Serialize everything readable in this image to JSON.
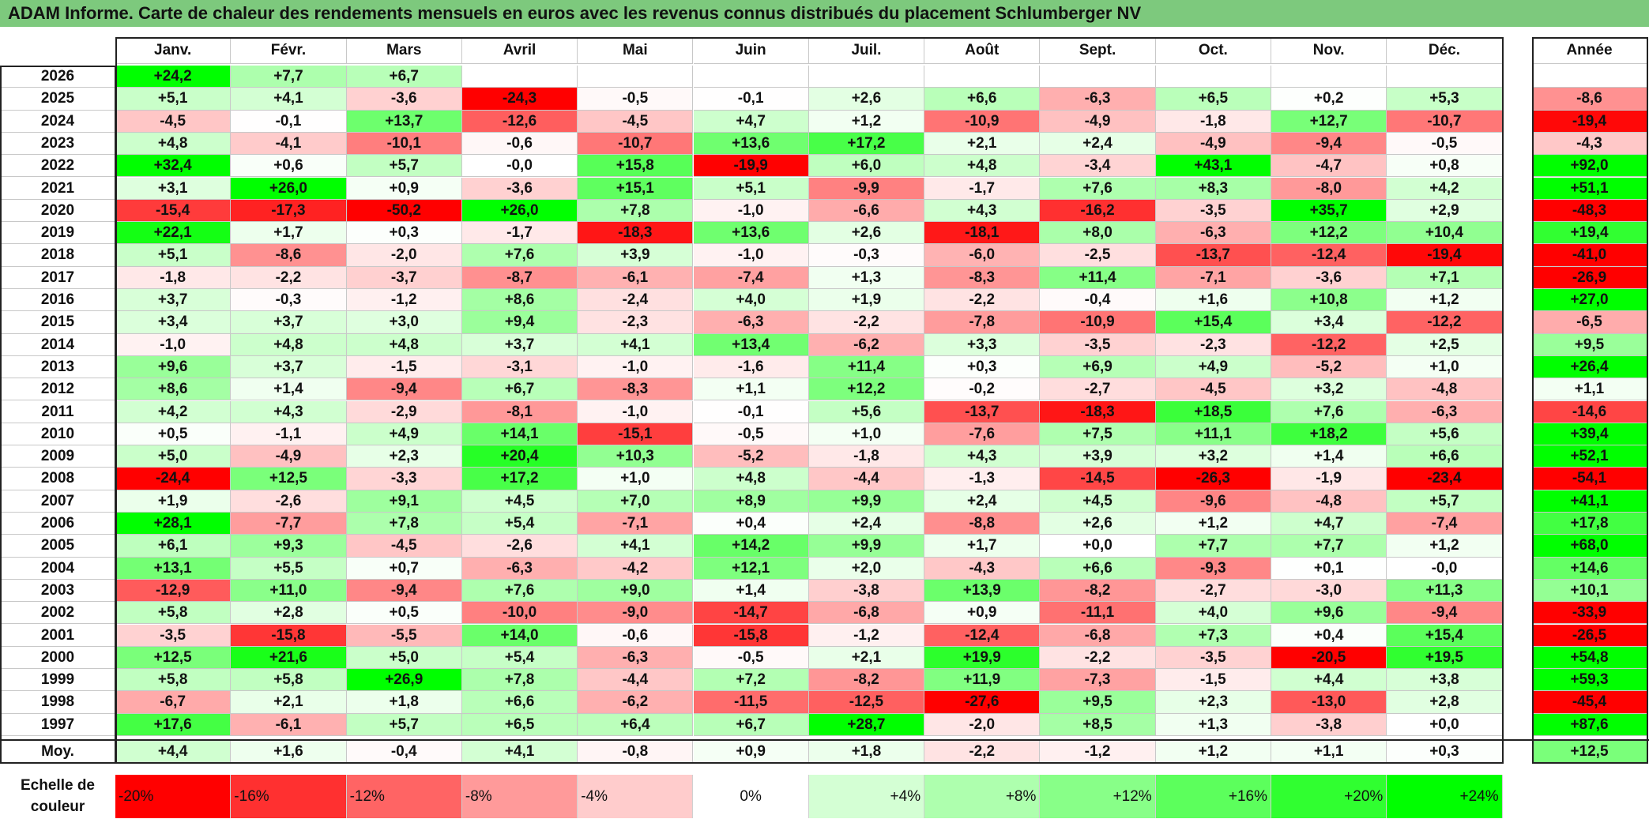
{
  "title": "ADAM Informe. Carte de chaleur des rendements mensuels en euros avec les revenus connus distribués du placement Schlumberger NV",
  "chart_data": {
    "type": "heatmap",
    "title": "ADAM Informe. Carte de chaleur des rendements mensuels en euros avec les revenus connus distribués du placement Schlumberger NV",
    "columns": [
      "Janv.",
      "Févr.",
      "Mars",
      "Avril",
      "Mai",
      "Juin",
      "Juil.",
      "Août",
      "Sept.",
      "Oct.",
      "Nov.",
      "Déc."
    ],
    "year_header": "Année",
    "average_label": "Moy.",
    "rows": [
      {
        "year": "2026",
        "values": [
          "+24,2",
          "+7,7",
          "+6,7",
          "",
          "",
          "",
          "",
          "",
          "",
          "",
          "",
          ""
        ],
        "annual": ""
      },
      {
        "year": "2025",
        "values": [
          "+5,1",
          "+4,1",
          "-3,6",
          "-24,3",
          "-0,5",
          "-0,1",
          "+2,6",
          "+6,6",
          "-6,3",
          "+6,5",
          "+0,2",
          "+5,3"
        ],
        "annual": "-8,6"
      },
      {
        "year": "2024",
        "values": [
          "-4,5",
          "-0,1",
          "+13,7",
          "-12,6",
          "-4,5",
          "+4,7",
          "+1,2",
          "-10,9",
          "-4,9",
          "-1,8",
          "+12,7",
          "-10,7"
        ],
        "annual": "-19,4"
      },
      {
        "year": "2023",
        "values": [
          "+4,8",
          "-4,1",
          "-10,1",
          "-0,6",
          "-10,7",
          "+13,6",
          "+17,2",
          "+2,1",
          "+2,4",
          "-4,9",
          "-9,4",
          "-0,5"
        ],
        "annual": "-4,3"
      },
      {
        "year": "2022",
        "values": [
          "+32,4",
          "+0,6",
          "+5,7",
          "-0,0",
          "+15,8",
          "-19,9",
          "+6,0",
          "+4,8",
          "-3,4",
          "+43,1",
          "-4,7",
          "+0,8"
        ],
        "annual": "+92,0"
      },
      {
        "year": "2021",
        "values": [
          "+3,1",
          "+26,0",
          "+0,9",
          "-3,6",
          "+15,1",
          "+5,1",
          "-9,9",
          "-1,7",
          "+7,6",
          "+8,3",
          "-8,0",
          "+4,2"
        ],
        "annual": "+51,1"
      },
      {
        "year": "2020",
        "values": [
          "-15,4",
          "-17,3",
          "-50,2",
          "+26,0",
          "+7,8",
          "-1,0",
          "-6,6",
          "+4,3",
          "-16,2",
          "-3,5",
          "+35,7",
          "+2,9"
        ],
        "annual": "-48,3"
      },
      {
        "year": "2019",
        "values": [
          "+22,1",
          "+1,7",
          "+0,3",
          "-1,7",
          "-18,3",
          "+13,6",
          "+2,6",
          "-18,1",
          "+8,0",
          "-6,3",
          "+12,2",
          "+10,4"
        ],
        "annual": "+19,4"
      },
      {
        "year": "2018",
        "values": [
          "+5,1",
          "-8,6",
          "-2,0",
          "+7,6",
          "+3,9",
          "-1,0",
          "-0,3",
          "-6,0",
          "-2,5",
          "-13,7",
          "-12,4",
          "-19,4"
        ],
        "annual": "-41,0"
      },
      {
        "year": "2017",
        "values": [
          "-1,8",
          "-2,2",
          "-3,7",
          "-8,7",
          "-6,1",
          "-7,4",
          "+1,3",
          "-8,3",
          "+11,4",
          "-7,1",
          "-3,6",
          "+7,1"
        ],
        "annual": "-26,9"
      },
      {
        "year": "2016",
        "values": [
          "+3,7",
          "-0,3",
          "-1,2",
          "+8,6",
          "-2,4",
          "+4,0",
          "+1,9",
          "-2,2",
          "-0,4",
          "+1,6",
          "+10,8",
          "+1,2"
        ],
        "annual": "+27,0"
      },
      {
        "year": "2015",
        "values": [
          "+3,4",
          "+3,7",
          "+3,0",
          "+9,4",
          "-2,3",
          "-6,3",
          "-2,2",
          "-7,8",
          "-10,9",
          "+15,4",
          "+3,4",
          "-12,2"
        ],
        "annual": "-6,5"
      },
      {
        "year": "2014",
        "values": [
          "-1,0",
          "+4,8",
          "+4,8",
          "+3,7",
          "+4,1",
          "+13,4",
          "-6,2",
          "+3,3",
          "-3,5",
          "-2,3",
          "-12,2",
          "+2,5"
        ],
        "annual": "+9,5"
      },
      {
        "year": "2013",
        "values": [
          "+9,6",
          "+3,7",
          "-1,5",
          "-3,1",
          "-1,0",
          "-1,6",
          "+11,4",
          "+0,3",
          "+6,9",
          "+4,9",
          "-5,2",
          "+1,0"
        ],
        "annual": "+26,4"
      },
      {
        "year": "2012",
        "values": [
          "+8,6",
          "+1,4",
          "-9,4",
          "+6,7",
          "-8,3",
          "+1,1",
          "+12,2",
          "-0,2",
          "-2,7",
          "-4,5",
          "+3,2",
          "-4,8"
        ],
        "annual": "+1,1"
      },
      {
        "year": "2011",
        "values": [
          "+4,2",
          "+4,3",
          "-2,9",
          "-8,1",
          "-1,0",
          "-0,1",
          "+5,6",
          "-13,7",
          "-18,3",
          "+18,5",
          "+7,6",
          "-6,3"
        ],
        "annual": "-14,6"
      },
      {
        "year": "2010",
        "values": [
          "+0,5",
          "-1,1",
          "+4,9",
          "+14,1",
          "-15,1",
          "-0,5",
          "+1,0",
          "-7,6",
          "+7,5",
          "+11,1",
          "+18,2",
          "+5,6"
        ],
        "annual": "+39,4"
      },
      {
        "year": "2009",
        "values": [
          "+5,0",
          "-4,9",
          "+2,3",
          "+20,4",
          "+10,3",
          "-5,2",
          "-1,8",
          "+4,3",
          "+3,9",
          "+3,2",
          "+1,4",
          "+6,6"
        ],
        "annual": "+52,1"
      },
      {
        "year": "2008",
        "values": [
          "-24,4",
          "+12,5",
          "-3,3",
          "+17,2",
          "+1,0",
          "+4,8",
          "-4,4",
          "-1,3",
          "-14,5",
          "-26,3",
          "-1,9",
          "-23,4"
        ],
        "annual": "-54,1"
      },
      {
        "year": "2007",
        "values": [
          "+1,9",
          "-2,6",
          "+9,1",
          "+4,5",
          "+7,0",
          "+8,9",
          "+9,9",
          "+2,4",
          "+4,5",
          "-9,6",
          "-4,8",
          "+5,7"
        ],
        "annual": "+41,1"
      },
      {
        "year": "2006",
        "values": [
          "+28,1",
          "-7,7",
          "+7,8",
          "+5,4",
          "-7,1",
          "+0,4",
          "+2,4",
          "-8,8",
          "+2,6",
          "+1,2",
          "+4,7",
          "-7,4"
        ],
        "annual": "+17,8"
      },
      {
        "year": "2005",
        "values": [
          "+6,1",
          "+9,3",
          "-4,5",
          "-2,6",
          "+4,1",
          "+14,2",
          "+9,9",
          "+1,7",
          "+0,0",
          "+7,7",
          "+7,7",
          "+1,2"
        ],
        "annual": "+68,0"
      },
      {
        "year": "2004",
        "values": [
          "+13,1",
          "+5,5",
          "+0,7",
          "-6,3",
          "-4,2",
          "+12,1",
          "+2,0",
          "-4,3",
          "+6,6",
          "-9,3",
          "+0,1",
          "-0,0"
        ],
        "annual": "+14,6"
      },
      {
        "year": "2003",
        "values": [
          "-12,9",
          "+11,0",
          "-9,4",
          "+7,6",
          "+9,0",
          "+1,4",
          "-3,8",
          "+13,9",
          "-8,2",
          "-2,7",
          "-3,0",
          "+11,3"
        ],
        "annual": "+10,1"
      },
      {
        "year": "2002",
        "values": [
          "+5,8",
          "+2,8",
          "+0,5",
          "-10,0",
          "-9,0",
          "-14,7",
          "-6,8",
          "+0,9",
          "-11,1",
          "+4,0",
          "+9,6",
          "-9,4"
        ],
        "annual": "-33,9"
      },
      {
        "year": "2001",
        "values": [
          "-3,5",
          "-15,8",
          "-5,5",
          "+14,0",
          "-0,6",
          "-15,8",
          "-1,2",
          "-12,4",
          "-6,8",
          "+7,3",
          "+0,4",
          "+15,4"
        ],
        "annual": "-26,5"
      },
      {
        "year": "2000",
        "values": [
          "+12,5",
          "+21,6",
          "+5,0",
          "+5,4",
          "-6,3",
          "-0,5",
          "+2,1",
          "+19,9",
          "-2,2",
          "-3,5",
          "-20,5",
          "+19,5"
        ],
        "annual": "+54,8"
      },
      {
        "year": "1999",
        "values": [
          "+5,8",
          "+5,8",
          "+26,9",
          "+7,8",
          "-4,4",
          "+7,2",
          "-8,2",
          "+11,9",
          "-7,3",
          "-1,5",
          "+4,4",
          "+3,8"
        ],
        "annual": "+59,3"
      },
      {
        "year": "1998",
        "values": [
          "-6,7",
          "+2,1",
          "+1,8",
          "+6,6",
          "-6,2",
          "-11,5",
          "-12,5",
          "-27,6",
          "+9,5",
          "+2,3",
          "-13,0",
          "+2,8"
        ],
        "annual": "-45,4"
      },
      {
        "year": "1997",
        "values": [
          "+17,6",
          "-6,1",
          "+5,7",
          "+6,5",
          "+6,4",
          "+6,7",
          "+28,7",
          "-2,0",
          "+8,5",
          "+1,3",
          "-3,8",
          "+0,0"
        ],
        "annual": "+87,6"
      }
    ],
    "averages": {
      "values": [
        "+4,4",
        "+1,6",
        "-0,4",
        "+4,1",
        "-0,8",
        "+0,9",
        "+1,8",
        "-2,2",
        "-1,2",
        "+1,2",
        "+1,1",
        "+0,3"
      ],
      "annual": "+12,5"
    },
    "color_scale": {
      "label": "Echelle de couleur",
      "stops": [
        {
          "label": "-20%",
          "value": -20,
          "color": "#ff0000"
        },
        {
          "label": "-16%",
          "value": -16,
          "color": "#ff3030"
        },
        {
          "label": "-12%",
          "value": -12,
          "color": "#ff6464"
        },
        {
          "label": "-8%",
          "value": -8,
          "color": "#ff9a9a"
        },
        {
          "label": "-4%",
          "value": -4,
          "color": "#ffcccc"
        },
        {
          "label": "0%",
          "value": 0,
          "color": "#ffffff"
        },
        {
          "label": "+4%",
          "value": 4,
          "color": "#d4ffd4"
        },
        {
          "label": "+8%",
          "value": 8,
          "color": "#aeffae"
        },
        {
          "label": "+12%",
          "value": 12,
          "color": "#88ff88"
        },
        {
          "label": "+16%",
          "value": 16,
          "color": "#5cff5c"
        },
        {
          "label": "+20%",
          "value": 20,
          "color": "#30ff30"
        },
        {
          "label": "+24%",
          "value": 24,
          "color": "#00ff00"
        }
      ]
    }
  }
}
